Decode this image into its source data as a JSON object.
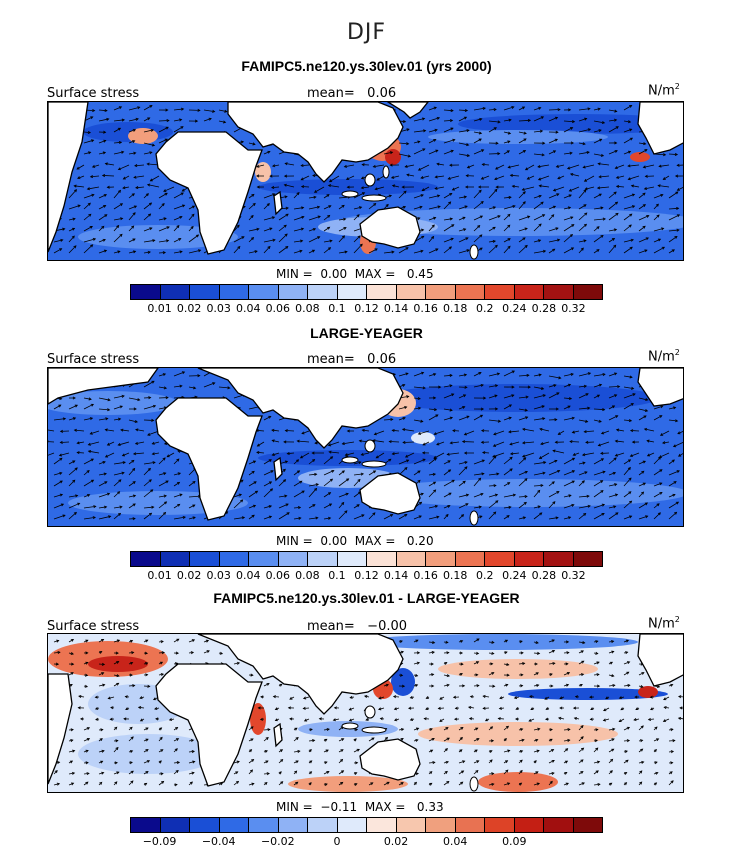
{
  "figure": {
    "season": "DJF",
    "units_base": "N/m",
    "units_exp": "2",
    "field_label": "Surface stress",
    "mean_label": "mean="
  },
  "palettes": {
    "sequential": [
      "#0a0a8c",
      "#0f2fb4",
      "#1a4fd6",
      "#2f6ae6",
      "#5a8ef0",
      "#8fb2f5",
      "#bcd2f8",
      "#dfeafb",
      "#fbe2d6",
      "#f7c2a9",
      "#f29e7c",
      "#ec7452",
      "#e2472c",
      "#c8241a",
      "#a31212",
      "#7e0a0a"
    ],
    "diverging": [
      "#0a0a8c",
      "#0f2fb4",
      "#1a4fd6",
      "#2f6ae6",
      "#5a8ef0",
      "#8fb2f5",
      "#bcd2f8",
      "#dfeafb",
      "#fbe6dc",
      "#f7c7ae",
      "#f0a07e",
      "#e87252",
      "#dd4327",
      "#c41f14",
      "#a10f0f",
      "#7e0a0a"
    ]
  },
  "panels": [
    {
      "title": "FAMIPC5.ne120.ys.30lev.01 (yrs 2000)",
      "mean_value": "0.06",
      "min_label": "MIN =",
      "min_value": "0.00",
      "max_label": "MAX =",
      "max_value": "0.45",
      "colorbar_ticks": [
        "0.01",
        "0.02",
        "0.03",
        "0.04",
        "0.06",
        "0.08",
        "0.1",
        "0.12",
        "0.14",
        "0.16",
        "0.18",
        "0.2",
        "0.24",
        "0.28",
        "0.32"
      ]
    },
    {
      "title": "LARGE-YEAGER",
      "mean_value": "0.06",
      "min_label": "MIN =",
      "min_value": "0.00",
      "max_label": "MAX =",
      "max_value": "0.20",
      "colorbar_ticks": [
        "0.01",
        "0.02",
        "0.03",
        "0.04",
        "0.06",
        "0.08",
        "0.1",
        "0.12",
        "0.14",
        "0.16",
        "0.18",
        "0.2",
        "0.24",
        "0.28",
        "0.32"
      ]
    },
    {
      "title": "FAMIPC5.ne120.ys.30lev.01 - LARGE-YEAGER",
      "mean_value": "−0.00",
      "min_label": "MIN =",
      "min_value": "−0.11",
      "max_label": "MAX =",
      "max_value": "0.33",
      "colorbar_ticks": [
        "−0.09",
        "",
        "−0.04",
        "",
        "−0.02",
        "",
        "0",
        "",
        "0.02",
        "",
        "0.04",
        "",
        "0.09",
        "",
        ""
      ]
    }
  ],
  "chart_data": [
    {
      "type": "heatmap",
      "title": "FAMIPC5.ne120.ys.30lev.01 (yrs 2000)",
      "variable": "Surface stress",
      "units": "N/m2",
      "season": "DJF",
      "mean": 0.06,
      "min": 0.0,
      "max": 0.45,
      "color_levels": [
        0.01,
        0.02,
        0.03,
        0.04,
        0.06,
        0.08,
        0.1,
        0.12,
        0.14,
        0.16,
        0.18,
        0.2,
        0.24,
        0.28,
        0.32
      ]
    },
    {
      "type": "heatmap",
      "title": "LARGE-YEAGER",
      "variable": "Surface stress",
      "units": "N/m2",
      "season": "DJF",
      "mean": 0.06,
      "min": 0.0,
      "max": 0.2,
      "color_levels": [
        0.01,
        0.02,
        0.03,
        0.04,
        0.06,
        0.08,
        0.1,
        0.12,
        0.14,
        0.16,
        0.18,
        0.2,
        0.24,
        0.28,
        0.32
      ]
    },
    {
      "type": "heatmap",
      "title": "FAMIPC5.ne120.ys.30lev.01 - LARGE-YEAGER",
      "variable": "Surface stress",
      "units": "N/m2",
      "season": "DJF",
      "mean": -0.0,
      "min": -0.11,
      "max": 0.33,
      "color_level_labels": [
        -0.09,
        -0.04,
        -0.02,
        0,
        0.02,
        0.04,
        0.09
      ]
    }
  ]
}
